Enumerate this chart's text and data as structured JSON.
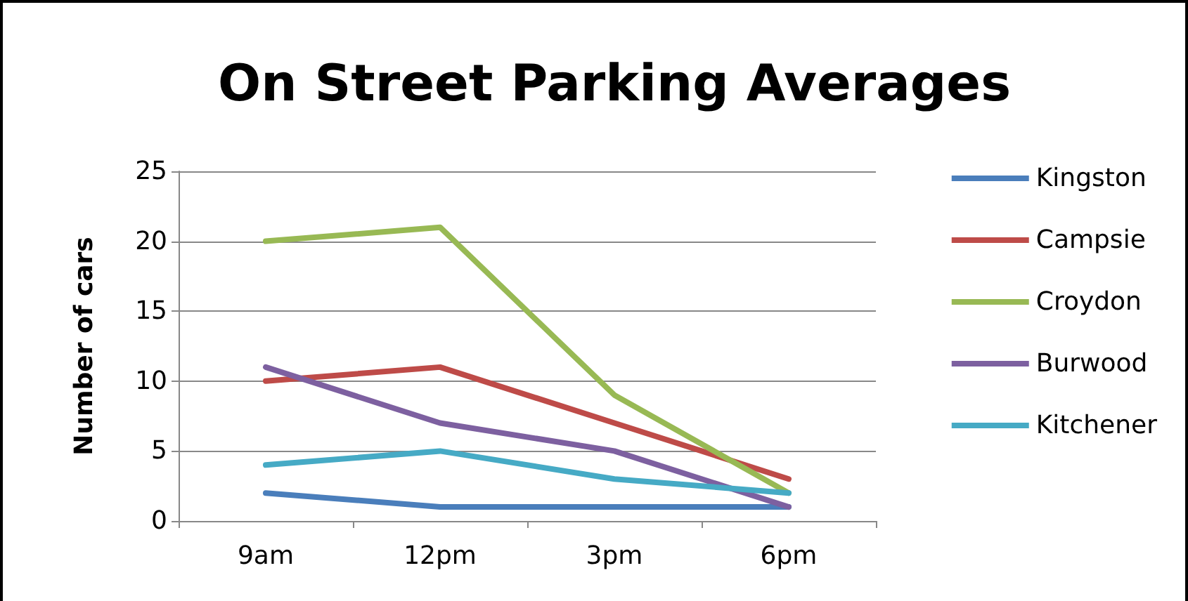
{
  "chart_data": {
    "type": "line",
    "title": "On Street Parking Averages",
    "ylabel": "Number of cars",
    "categories": [
      "9am",
      "12pm",
      "3pm",
      "6pm"
    ],
    "series": [
      {
        "name": "Kingston",
        "color": "#4a7ebb",
        "values": [
          2,
          1,
          1,
          1
        ]
      },
      {
        "name": "Campsie",
        "color": "#be4b48",
        "values": [
          10,
          11,
          7,
          3
        ]
      },
      {
        "name": "Croydon",
        "color": "#98b954",
        "values": [
          20,
          21,
          9,
          2
        ]
      },
      {
        "name": "Burwood",
        "color": "#7d60a0",
        "values": [
          11,
          7,
          5,
          1
        ]
      },
      {
        "name": "Kitchener",
        "color": "#46aac5",
        "values": [
          4,
          5,
          3,
          2
        ]
      }
    ],
    "ylim": [
      0,
      25
    ],
    "yticks": [
      0,
      5,
      10,
      15,
      20,
      25
    ],
    "grid": "y",
    "legend": "right",
    "marker": "none",
    "line_style": "solid"
  }
}
